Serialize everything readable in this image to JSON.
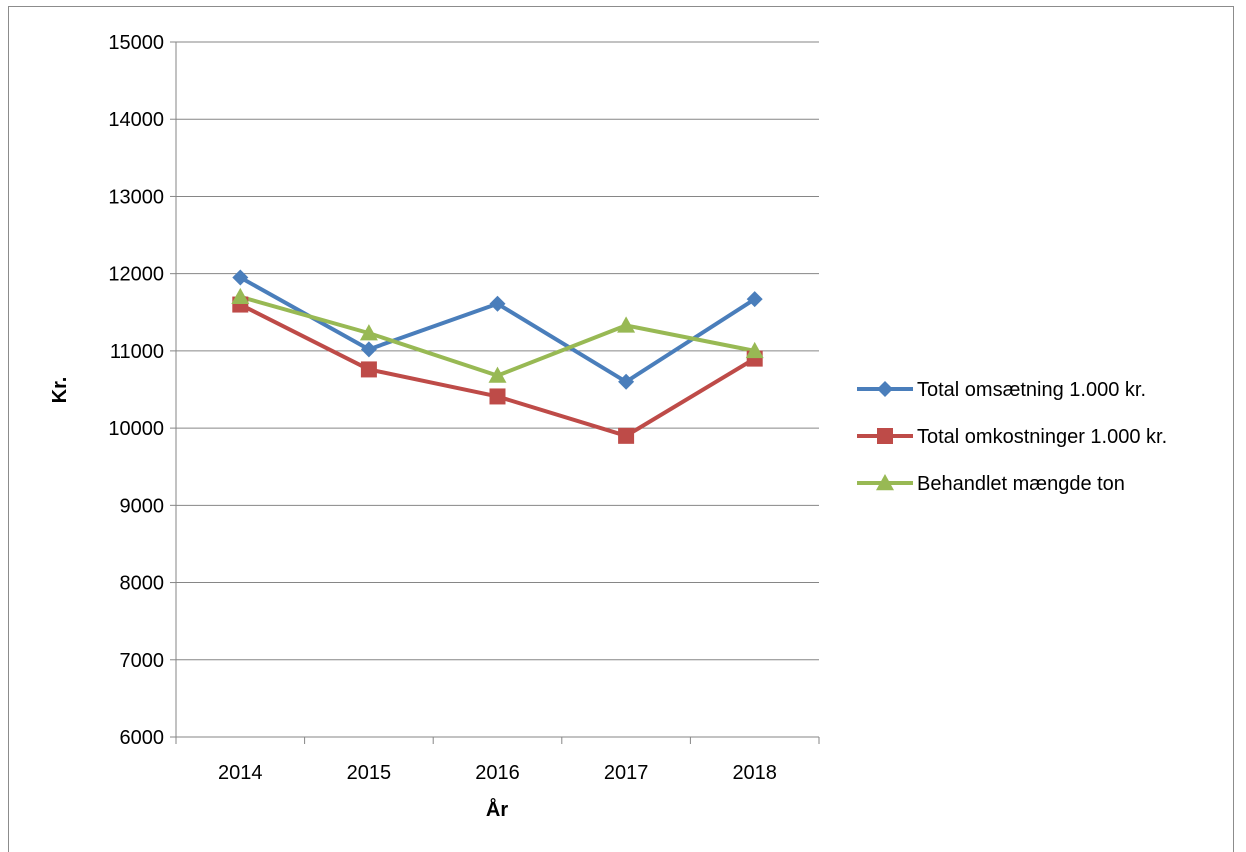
{
  "chart_data": {
    "type": "line",
    "title": "",
    "xlabel": "År",
    "ylabel": "Kr.",
    "categories": [
      "2014",
      "2015",
      "2016",
      "2017",
      "2018"
    ],
    "ylim": [
      6000,
      15000
    ],
    "yticks": [
      "6000",
      "7000",
      "8000",
      "9000",
      "10000",
      "11000",
      "12000",
      "13000",
      "14000",
      "15000"
    ],
    "grid": "horizontal",
    "legend_position": "right",
    "series": [
      {
        "name": "Total omsætning 1.000 kr.",
        "values": [
          11950,
          11020,
          11610,
          10600,
          11670
        ],
        "color": "#4a7ebb",
        "marker": "diamond"
      },
      {
        "name": "Total omkostninger 1.000 kr.",
        "values": [
          11600,
          10760,
          10410,
          9900,
          10900
        ],
        "color": "#be4b48",
        "marker": "square"
      },
      {
        "name": "Behandlet mængde ton",
        "values": [
          11700,
          11230,
          10680,
          11330,
          11000
        ],
        "color": "#98b954",
        "marker": "triangle"
      }
    ]
  }
}
